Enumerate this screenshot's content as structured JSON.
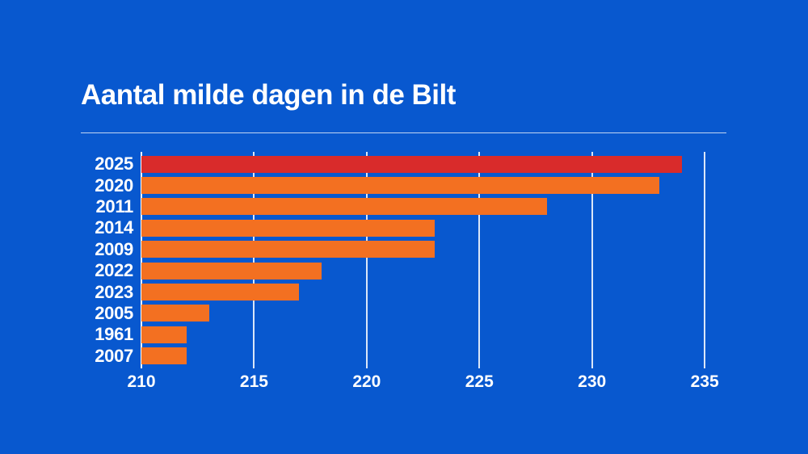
{
  "page": {
    "background_color": "#0858cf",
    "text_color": "#ffffff"
  },
  "header": {
    "title": "Aantal milde dagen in de Bilt"
  },
  "chart_data": {
    "type": "bar",
    "orientation": "horizontal",
    "title": "Aantal milde dagen in de Bilt",
    "categories": [
      "2025",
      "2020",
      "2011",
      "2014",
      "2009",
      "2022",
      "2023",
      "2005",
      "1961",
      "2007"
    ],
    "values": [
      234,
      233,
      228,
      223,
      223,
      218,
      217,
      213,
      212,
      212
    ],
    "highlight_category": "2025",
    "highlight_index": 0,
    "colors": {
      "highlight": "#d92b2b",
      "default": "#f37021",
      "gridline": "rgba(255,255,255,0.85)",
      "axis": "#ffffff"
    },
    "xlim": [
      210,
      236
    ],
    "xticks": [
      210,
      215,
      220,
      225,
      230,
      235
    ],
    "xlabel": "",
    "ylabel": "",
    "grid": "vertical",
    "legend": "none"
  }
}
